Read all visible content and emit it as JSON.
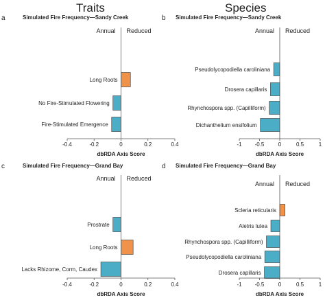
{
  "columns": {
    "left": "Traits",
    "right": "Species"
  },
  "colors": {
    "negative": "#4badc6",
    "positive": "#f0924a",
    "axis": "#555555",
    "bar_stroke": "#333333"
  },
  "chart_data": [
    {
      "type": "bar",
      "orientation": "horizontal",
      "panel": "a",
      "title": "Simulated Fire Frequency—Sandy Creek",
      "xlabel": "dbRDA Axis Score",
      "ylabel": "",
      "left_label": "Annual",
      "right_label": "Reduced",
      "xlim": [
        -0.4,
        0.4
      ],
      "ticks": [
        -0.4,
        -0.2,
        0,
        0.2,
        0.4
      ],
      "tick_labels": [
        "-0.4",
        "-0.2",
        "0",
        "0.2",
        "0.4"
      ],
      "categories": [
        "Long Roots",
        "No Fire-Stimulated Flowering",
        "Fire-Stimulated Emergence"
      ],
      "values": [
        0.07,
        -0.06,
        -0.07
      ]
    },
    {
      "type": "bar",
      "orientation": "horizontal",
      "panel": "b",
      "title": "Simulated Fire Frequency—Sandy Creek",
      "xlabel": "dbRDA Axis Score",
      "ylabel": "",
      "left_label": "Annual",
      "right_label": "Reduced",
      "xlim": [
        -1,
        1
      ],
      "ticks": [
        -1,
        -0.5,
        0,
        0.5,
        1
      ],
      "tick_labels": [
        "-1",
        "-0.5",
        "0",
        "0.5",
        "1"
      ],
      "categories": [
        "Pseudolycopodiella caroliniana",
        "Drosera capillaris",
        "Rhynchospora spp. (Capilliform)",
        "Dichanthelium ensifolium"
      ],
      "values": [
        -0.15,
        -0.23,
        -0.26,
        -0.48
      ]
    },
    {
      "type": "bar",
      "orientation": "horizontal",
      "panel": "c",
      "title": "Simulated Fire Frequency—Grand Bay",
      "xlabel": "dbRDA Axis Score",
      "ylabel": "",
      "left_label": "Annual",
      "right_label": "Reduced",
      "xlim": [
        -0.4,
        0.4
      ],
      "ticks": [
        -0.4,
        -0.2,
        0,
        0.2,
        0.4
      ],
      "tick_labels": [
        "-0.4",
        "-0.2",
        "0",
        "0.2",
        "0.4"
      ],
      "categories": [
        "Prostrate",
        "Long Roots",
        "Lacks Rhizome, Corm, Caudex"
      ],
      "values": [
        -0.06,
        0.09,
        -0.15
      ]
    },
    {
      "type": "bar",
      "orientation": "horizontal",
      "panel": "d",
      "title": "Simulated Fire Frequency—Grand Bay",
      "xlabel": "dbRDA Axis Score",
      "ylabel": "",
      "left_label": "Annual",
      "right_label": "Reduced",
      "xlim": [
        -1,
        1
      ],
      "ticks": [
        -1,
        -0.5,
        0,
        0.5,
        1
      ],
      "tick_labels": [
        "-1",
        "-0.5",
        "0",
        "0.5",
        "1"
      ],
      "categories": [
        "Scleria reticularis",
        "Aletris lutea",
        "Rhynchospora spp. (Capilliform)",
        "Pseudolycopodiella caroliniana",
        "Drosera capillaris"
      ],
      "values": [
        0.13,
        -0.22,
        -0.33,
        -0.37,
        -0.38
      ]
    }
  ]
}
